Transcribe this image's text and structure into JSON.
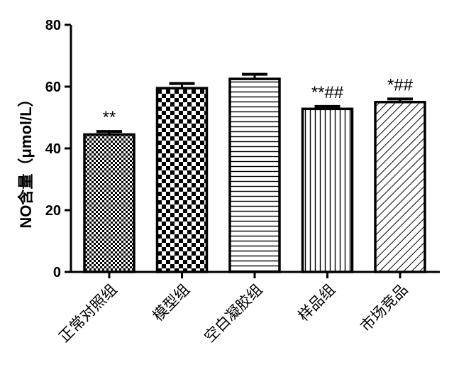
{
  "chart_data": {
    "type": "bar",
    "title": "",
    "xlabel": "",
    "ylabel": "NO含量（μmol/L）",
    "ylim": [
      0,
      80
    ],
    "yticks": [
      0,
      20,
      40,
      60,
      80
    ],
    "grid": false,
    "legend": "none",
    "categories": [
      "正常对照组",
      "模型组",
      "空白凝胶组",
      "样品组",
      "市场竞品"
    ],
    "values": [
      44.5,
      59.5,
      62.5,
      52.8,
      55.0
    ],
    "errors": [
      1.0,
      1.5,
      1.5,
      0.8,
      1.0
    ],
    "annotations": [
      "**",
      "",
      "",
      "**##",
      "*##"
    ],
    "patterns": [
      "fine-checker",
      "checker",
      "horizontal-lines",
      "vertical-lines",
      "diagonal-lines"
    ],
    "colors": {
      "bar_stroke": "#000000",
      "pattern": "#000000",
      "background": "#ffffff"
    }
  }
}
